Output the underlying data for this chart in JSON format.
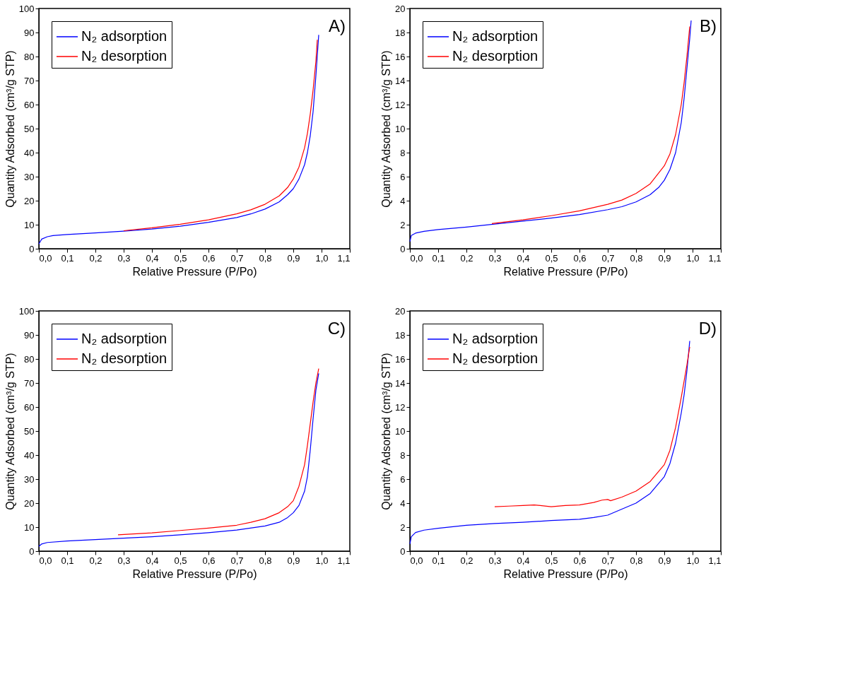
{
  "chart_data": [
    {
      "type": "line",
      "xlabel": "Relative Pressure (P/Po)",
      "ylabel": "Quantity Adsorbed (cm³/g STP)",
      "annotations": [
        "A)"
      ],
      "legend": "top left",
      "grid": false,
      "marker": "none",
      "line_style": "solid",
      "xlim": [
        0,
        1.1
      ],
      "xticks": [
        {
          "value": 0,
          "label": "0,0"
        },
        {
          "value": 0.1,
          "label": "0,1"
        },
        {
          "value": 0.2,
          "label": "0,2"
        },
        {
          "value": 0.3,
          "label": "0,3"
        },
        {
          "value": 0.4,
          "label": "0,4"
        },
        {
          "value": 0.5,
          "label": "0,5"
        },
        {
          "value": 0.6,
          "label": "0,6"
        },
        {
          "value": 0.7,
          "label": "0,7"
        },
        {
          "value": 0.8,
          "label": "0,8"
        },
        {
          "value": 0.9,
          "label": "0,9"
        },
        {
          "value": 1.0,
          "label": "1,0"
        },
        {
          "value": 1.1,
          "label": "1,1"
        }
      ],
      "ylim": [
        0,
        100
      ],
      "yticks": [
        0,
        10,
        20,
        30,
        40,
        50,
        60,
        70,
        80,
        90,
        100
      ],
      "series": [
        {
          "name": "N₂ adsorption",
          "color": "#0000ff",
          "x": [
            0,
            0.01,
            0.03,
            0.05,
            0.1,
            0.2,
            0.3,
            0.4,
            0.5,
            0.6,
            0.7,
            0.75,
            0.8,
            0.85,
            0.88,
            0.9,
            0.92,
            0.94,
            0.95,
            0.96,
            0.97,
            0.98,
            0.99
          ],
          "values": [
            2,
            4,
            5,
            5.5,
            5.9,
            6.6,
            7.3,
            8.2,
            9.4,
            11,
            13,
            14.5,
            16.5,
            19.5,
            22.5,
            25,
            29,
            35,
            40,
            47,
            57,
            72,
            89
          ]
        },
        {
          "name": "N₂ desorption",
          "color": "#ff0000",
          "x": [
            0.3,
            0.4,
            0.5,
            0.6,
            0.7,
            0.75,
            0.8,
            0.85,
            0.88,
            0.9,
            0.92,
            0.94,
            0.95,
            0.96,
            0.97,
            0.98,
            0.985
          ],
          "values": [
            7.5,
            8.7,
            10.2,
            12,
            14.5,
            16.2,
            18.5,
            22,
            25.5,
            29,
            34,
            42,
            48,
            56,
            66,
            78,
            87
          ]
        }
      ]
    },
    {
      "type": "line",
      "xlabel": "Relative Pressure (P/Po)",
      "ylabel": "Quantity Adsorbed (cm³/g STP)",
      "annotations": [
        "B)"
      ],
      "legend": "top left",
      "grid": false,
      "marker": "none",
      "line_style": "solid",
      "xlim": [
        0,
        1.1
      ],
      "xticks": [
        {
          "value": 0,
          "label": "0,0"
        },
        {
          "value": 0.1,
          "label": "0,1"
        },
        {
          "value": 0.2,
          "label": "0,2"
        },
        {
          "value": 0.3,
          "label": "0,3"
        },
        {
          "value": 0.4,
          "label": "0,4"
        },
        {
          "value": 0.5,
          "label": "0,5"
        },
        {
          "value": 0.6,
          "label": "0,6"
        },
        {
          "value": 0.7,
          "label": "0,7"
        },
        {
          "value": 0.8,
          "label": "0,8"
        },
        {
          "value": 0.9,
          "label": "0,9"
        },
        {
          "value": 1.0,
          "label": "1,0"
        },
        {
          "value": 1.1,
          "label": "1,1"
        }
      ],
      "ylim": [
        0,
        20
      ],
      "yticks": [
        0,
        2,
        4,
        6,
        8,
        10,
        12,
        14,
        16,
        18,
        20
      ],
      "series": [
        {
          "name": "N₂ adsorption",
          "color": "#0000ff",
          "x": [
            0,
            0.005,
            0.02,
            0.05,
            0.1,
            0.2,
            0.3,
            0.4,
            0.5,
            0.6,
            0.7,
            0.75,
            0.8,
            0.85,
            0.88,
            0.9,
            0.92,
            0.94,
            0.96,
            0.97,
            0.98,
            0.99,
            0.995
          ],
          "values": [
            0.6,
            1.1,
            1.3,
            1.45,
            1.6,
            1.8,
            2.05,
            2.3,
            2.55,
            2.85,
            3.25,
            3.5,
            3.9,
            4.5,
            5.1,
            5.7,
            6.6,
            8,
            10.5,
            12.5,
            15,
            17.5,
            19
          ]
        },
        {
          "name": "N₂ desorption",
          "color": "#ff0000",
          "x": [
            0.29,
            0.4,
            0.5,
            0.6,
            0.7,
            0.75,
            0.8,
            0.85,
            0.9,
            0.92,
            0.94,
            0.96,
            0.97,
            0.98,
            0.99
          ],
          "values": [
            2.1,
            2.4,
            2.75,
            3.15,
            3.7,
            4.05,
            4.6,
            5.4,
            6.9,
            7.9,
            9.5,
            12,
            13.8,
            16,
            18.5
          ]
        }
      ]
    },
    {
      "type": "line",
      "xlabel": "Relative Pressure (P/Po)",
      "ylabel": "Quantity Adsorbed (cm³/g STP)",
      "annotations": [
        "C)"
      ],
      "legend": "top left",
      "grid": false,
      "marker": "none",
      "line_style": "solid",
      "xlim": [
        0,
        1.1
      ],
      "xticks": [
        {
          "value": 0,
          "label": "0,0"
        },
        {
          "value": 0.1,
          "label": "0,1"
        },
        {
          "value": 0.2,
          "label": "0,2"
        },
        {
          "value": 0.3,
          "label": "0,3"
        },
        {
          "value": 0.4,
          "label": "0,4"
        },
        {
          "value": 0.5,
          "label": "0,5"
        },
        {
          "value": 0.6,
          "label": "0,6"
        },
        {
          "value": 0.7,
          "label": "0,7"
        },
        {
          "value": 0.8,
          "label": "0,8"
        },
        {
          "value": 0.9,
          "label": "0,9"
        },
        {
          "value": 1.0,
          "label": "1,0"
        },
        {
          "value": 1.1,
          "label": "1,1"
        }
      ],
      "ylim": [
        0,
        100
      ],
      "yticks": [
        0,
        10,
        20,
        30,
        40,
        50,
        60,
        70,
        80,
        90,
        100
      ],
      "series": [
        {
          "name": "N₂ adsorption",
          "color": "#0000ff",
          "x": [
            0,
            0.01,
            0.03,
            0.1,
            0.2,
            0.3,
            0.4,
            0.5,
            0.6,
            0.7,
            0.8,
            0.85,
            0.88,
            0.9,
            0.92,
            0.94,
            0.95,
            0.96,
            0.97,
            0.98,
            0.99
          ],
          "values": [
            2,
            3,
            3.6,
            4.2,
            4.8,
            5.4,
            6,
            6.8,
            7.7,
            8.8,
            10.5,
            12,
            14,
            16,
            19,
            25,
            31,
            42,
            55,
            67,
            74
          ]
        },
        {
          "name": "N₂ desorption",
          "color": "#ff0000",
          "x": [
            0.28,
            0.4,
            0.5,
            0.6,
            0.7,
            0.75,
            0.8,
            0.85,
            0.88,
            0.9,
            0.92,
            0.94,
            0.95,
            0.96,
            0.97,
            0.98,
            0.99
          ],
          "values": [
            6.8,
            7.6,
            8.6,
            9.6,
            10.8,
            12,
            13.5,
            16,
            18.5,
            21,
            27,
            36,
            44,
            53,
            62,
            70,
            76
          ]
        }
      ]
    },
    {
      "type": "line",
      "xlabel": "Relative Pressure (P/Po)",
      "ylabel": "Quantity Adsorbed (cm³/g STP)",
      "annotations": [
        "D)"
      ],
      "legend": "top left",
      "grid": false,
      "marker": "none",
      "line_style": "solid",
      "xlim": [
        0,
        1.1
      ],
      "xticks": [
        {
          "value": 0,
          "label": "0,0"
        },
        {
          "value": 0.1,
          "label": "0,1"
        },
        {
          "value": 0.2,
          "label": "0,2"
        },
        {
          "value": 0.3,
          "label": "0,3"
        },
        {
          "value": 0.4,
          "label": "0,4"
        },
        {
          "value": 0.5,
          "label": "0,5"
        },
        {
          "value": 0.6,
          "label": "0,6"
        },
        {
          "value": 0.7,
          "label": "0,7"
        },
        {
          "value": 0.8,
          "label": "0,8"
        },
        {
          "value": 0.9,
          "label": "0,9"
        },
        {
          "value": 1.0,
          "label": "1,0"
        },
        {
          "value": 1.1,
          "label": "1,1"
        }
      ],
      "ylim": [
        0,
        20
      ],
      "yticks": [
        0,
        2,
        4,
        6,
        8,
        10,
        12,
        14,
        16,
        18,
        20
      ],
      "series": [
        {
          "name": "N₂ adsorption",
          "color": "#0000ff",
          "x": [
            0,
            0.005,
            0.02,
            0.05,
            0.1,
            0.2,
            0.3,
            0.4,
            0.5,
            0.6,
            0.65,
            0.7,
            0.75,
            0.8,
            0.85,
            0.9,
            0.92,
            0.94,
            0.96,
            0.97,
            0.98,
            0.99
          ],
          "values": [
            0.6,
            1.2,
            1.55,
            1.75,
            1.9,
            2.15,
            2.3,
            2.4,
            2.55,
            2.65,
            2.8,
            3.0,
            3.5,
            4.0,
            4.8,
            6.2,
            7.3,
            9,
            11.5,
            13,
            15,
            17.5
          ]
        },
        {
          "name": "N₂ desorption",
          "color": "#ff0000",
          "x": [
            0.3,
            0.35,
            0.4,
            0.44,
            0.5,
            0.55,
            0.6,
            0.65,
            0.68,
            0.7,
            0.71,
            0.75,
            0.8,
            0.85,
            0.9,
            0.92,
            0.94,
            0.96,
            0.98,
            0.99
          ],
          "values": [
            3.7,
            3.75,
            3.8,
            3.85,
            3.7,
            3.8,
            3.85,
            4.05,
            4.25,
            4.3,
            4.2,
            4.5,
            5.0,
            5.8,
            7.2,
            8.4,
            10.3,
            12.8,
            15.5,
            17
          ]
        }
      ]
    }
  ]
}
